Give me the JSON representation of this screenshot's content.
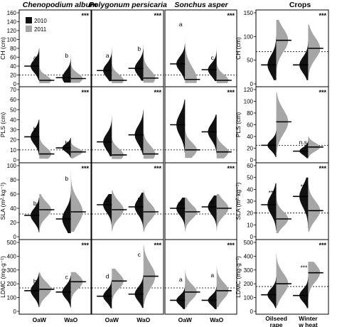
{
  "chart_data": {
    "type": "violin-panel-grid",
    "column_titles": [
      "Chenopodium album",
      "Polygonum persicaria",
      "Sonchus asper",
      "Crops"
    ],
    "legend": [
      {
        "name": "2010",
        "color": "#111111"
      },
      {
        "name": "2011",
        "color": "#a6a6a6"
      }
    ],
    "weed_x_labels": [
      "OaW",
      "WaO"
    ],
    "crop_x_labels": [
      [
        "Oilseed",
        "rape"
      ],
      [
        "Winter",
        "w heat"
      ]
    ],
    "rows": [
      {
        "ylabel": "CH (cm)",
        "weed_ylim": [
          0,
          160
        ],
        "weed_ticks": [
          0,
          20,
          40,
          60,
          80,
          100,
          120,
          140,
          160
        ],
        "crop_ylim": [
          0,
          150
        ],
        "crop_ticks": [
          0,
          50,
          100,
          150
        ],
        "weed_ref": 20,
        "crop_ref": 68,
        "panels": [
          {
            "sig": "***",
            "groups": [
              {
                "label": "a",
                "medians": [
                  40,
                  8
                ],
                "tops": [
                  80,
                  60
                ]
              },
              {
                "label": "b",
                "medians": [
                  14,
                  12
                ],
                "tops": [
                  85,
                  65
                ]
              }
            ]
          },
          {
            "sig": "***",
            "groups": [
              {
                "label": "a",
                "medians": [
                  30,
                  8
                ],
                "tops": [
                  85,
                  75
                ]
              },
              {
                "label": "b",
                "medians": [
                  35,
                  13
                ],
                "tops": [
                  90,
                  100
                ]
              }
            ]
          },
          {
            "sig": "***",
            "groups": [
              {
                "label": "a",
                "medians": [
                  45,
                  10
                ],
                "tops": [
                  90,
                  155
                ]
              },
              {
                "label": "c",
                "medians": [
                  32,
                  8
                ],
                "tops": [
                  80,
                  75
                ]
              }
            ]
          },
          {
            "sig": "***",
            "groups": [
              {
                "label": "",
                "medians": [
                  40,
                  92
                ],
                "tops": [
                  112,
                  135
                ]
              },
              {
                "label": "",
                "medians": [
                  40,
                  75
                ],
                "tops": [
                  92,
                  125
                ]
              }
            ]
          }
        ]
      },
      {
        "ylabel": "PLS (cm)",
        "weed_ylim": [
          0,
          70
        ],
        "weed_ticks": [
          0,
          10,
          20,
          30,
          40,
          50,
          60,
          70
        ],
        "crop_ylim": [
          0,
          120
        ],
        "crop_ticks": [
          0,
          20,
          40,
          60,
          80,
          100,
          120
        ],
        "weed_ref": 10,
        "crop_ref": 25,
        "panels": [
          {
            "sig": "***",
            "groups": [
              {
                "label": "b",
                "medians": [
                  23,
                  6
                ],
                "tops": [
                  40,
                  35
                ]
              },
              {
                "label": "b",
                "medians": [
                  12,
                  8
                ],
                "tops": [
                  22,
                  20
                ]
              }
            ]
          },
          {
            "sig": "***",
            "groups": [
              {
                "label": "",
                "medians": [
                  18,
                  5
                ],
                "tops": [
                  45,
                  35
                ]
              },
              {
                "label": "",
                "medians": [
                  25,
                  6
                ],
                "tops": [
                  50,
                  45
                ]
              }
            ]
          },
          {
            "sig": "***",
            "groups": [
              {
                "label": "",
                "medians": [
                  35,
                  10
                ],
                "tops": [
                  60,
                  40
                ]
              },
              {
                "label": "",
                "medians": [
                  28,
                  8
                ],
                "tops": [
                  45,
                  35
                ]
              }
            ]
          },
          {
            "sig": "***",
            "groups": [
              {
                "label": "",
                "medians": [
                  25,
                  65
                ],
                "tops": [
                  50,
                  115
                ]
              },
              {
                "label": "n.s.",
                "medians": [
                  15,
                  22
                ],
                "tops": [
                  35,
                  40
                ]
              }
            ]
          }
        ]
      },
      {
        "ylabel": "SLA (m²·kg⁻¹)",
        "weed_ylim": [
          0,
          100
        ],
        "weed_ticks": [
          0,
          20,
          40,
          60,
          80,
          100
        ],
        "crop_ylim": [
          0,
          60
        ],
        "crop_ticks": [
          0,
          10,
          20,
          30,
          40,
          50,
          60
        ],
        "weed_ref": 32,
        "crop_ref": 20,
        "panels": [
          {
            "sig": "***",
            "groups": [
              {
                "label": "b",
                "medians": [
                  30,
                  38
                ],
                "tops": [
                  55,
                  60
                ]
              },
              {
                "label": "b",
                "medians": [
                  25,
                  35
                ],
                "tops": [
                  75,
                  95
                ]
              }
            ]
          },
          {
            "sig": "***",
            "groups": [
              {
                "label": "b",
                "medians": [
                  45,
                  38
                ],
                "tops": [
                  60,
                  65
                ]
              },
              {
                "label": "b",
                "medians": [
                  42,
                  35
                ],
                "tops": [
                  62,
                  65
                ]
              }
            ]
          },
          {
            "sig": "***",
            "groups": [
              {
                "label": "ab",
                "medians": [
                  40,
                  35
                ],
                "tops": [
                  55,
                  55
                ]
              },
              {
                "label": "b",
                "medians": [
                  42,
                  40
                ],
                "tops": [
                  58,
                  60
                ]
              }
            ]
          },
          {
            "sig": "***",
            "groups": [
              {
                "label": "***",
                "medians": [
                  27,
                  15
                ],
                "tops": [
                  45,
                  35
                ]
              },
              {
                "label": "***",
                "medians": [
                  34,
                  22
                ],
                "tops": [
                  50,
                  45
                ]
              }
            ]
          }
        ]
      },
      {
        "ylabel": "LDMC (mg·g⁻¹)",
        "weed_ylim": [
          0,
          500
        ],
        "weed_ticks": [
          0,
          100,
          200,
          300,
          400,
          500
        ],
        "crop_ylim": [
          0,
          500
        ],
        "crop_ticks": [
          0,
          100,
          200,
          300,
          400,
          500
        ],
        "weed_ref": 170,
        "crop_ref": 180,
        "panels": [
          {
            "sig": "***",
            "groups": [
              {
                "label": "b",
                "medians": [
                  150,
                  160
                ],
                "tops": [
                  280,
                  285
                ]
              },
              {
                "label": "c",
                "medians": [
                  140,
                  215
                ],
                "tops": [
                  260,
                  285
                ]
              }
            ]
          },
          {
            "sig": "***",
            "groups": [
              {
                "label": "d",
                "medians": [
                  110,
                  220
                ],
                "tops": [
                  240,
                  310
                ]
              },
              {
                "label": "c",
                "medians": [
                  125,
                  255
                ],
                "tops": [
                  280,
                  480
                ]
              }
            ]
          },
          {
            "sig": "***",
            "groups": [
              {
                "label": "a",
                "medians": [
                  80,
                  140
                ],
                "tops": [
                  200,
                  300
                ]
              },
              {
                "label": "a",
                "medians": [
                  80,
                  150
                ],
                "tops": [
                  200,
                  330
                ]
              }
            ]
          },
          {
            "sig": "***",
            "groups": [
              {
                "label": "",
                "medians": [
                  120,
                  200
                ],
                "tops": [
                  250,
                  420
                ]
              },
              {
                "label": "***",
                "medians": [
                  115,
                  280
                ],
                "tops": [
                  250,
                  360
                ]
              }
            ]
          }
        ]
      }
    ]
  }
}
